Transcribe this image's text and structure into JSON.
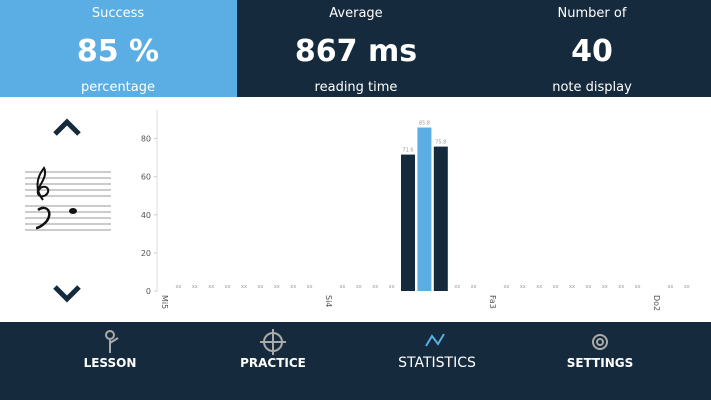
{
  "stats": [
    {
      "label": "Success",
      "value": "85 %",
      "caption": "percentage"
    },
    {
      "label": "Average",
      "value": "867 ms",
      "caption": "reading time"
    },
    {
      "label": "Number of",
      "value": "40",
      "caption": "note display"
    }
  ],
  "chart_data": {
    "type": "bar",
    "categories": [
      "Mi5",
      null,
      null,
      null,
      null,
      null,
      null,
      null,
      null,
      null,
      "Si4",
      null,
      null,
      null,
      null,
      null,
      null,
      null,
      null,
      null,
      "Fa3",
      null,
      null,
      null,
      null,
      null,
      null,
      null,
      null,
      null,
      "Do2",
      null,
      null
    ],
    "values": [
      0,
      0,
      0,
      0,
      0,
      0,
      0,
      0,
      0,
      0,
      0,
      0,
      0,
      0,
      0,
      71.6,
      85.8,
      75.8,
      0,
      0,
      0,
      0,
      0,
      0,
      0,
      0,
      0,
      0,
      0,
      0,
      0,
      0,
      0
    ],
    "value_labels": [
      null,
      "xx",
      "xx",
      "xx",
      "xx",
      "xx",
      "xx",
      "xx",
      "xx",
      "xx",
      null,
      "xx",
      "xx",
      "xx",
      "xx",
      "71.6",
      "85.8",
      "75.8",
      "xx",
      "xx",
      null,
      "xx",
      "xx",
      "xx",
      "xx",
      "xx",
      "xx",
      "xx",
      "xx",
      "xx",
      null,
      "xx",
      "xx"
    ],
    "colors": [
      "#152a3c",
      "#152a3c",
      "#152a3c",
      "#152a3c",
      "#152a3c",
      "#152a3c",
      "#152a3c",
      "#152a3c",
      "#152a3c",
      "#152a3c",
      "#152a3c",
      "#152a3c",
      "#152a3c",
      "#152a3c",
      "#152a3c",
      "#152a3c",
      "#5aaee3",
      "#152a3c",
      "#152a3c",
      "#152a3c",
      "#152a3c",
      "#152a3c",
      "#152a3c",
      "#152a3c",
      "#152a3c",
      "#152a3c",
      "#152a3c",
      "#152a3c",
      "#152a3c",
      "#152a3c",
      "#152a3c",
      "#152a3c",
      "#152a3c"
    ],
    "ylim": [
      0,
      95
    ],
    "yticks": [
      0,
      20,
      40,
      60,
      80
    ]
  },
  "nav": [
    {
      "label": "LESSON",
      "active": false
    },
    {
      "label": "PRACTICE",
      "active": false
    },
    {
      "label": "STATISTICS",
      "active": true
    },
    {
      "label": "SETTINGS",
      "active": false
    }
  ]
}
